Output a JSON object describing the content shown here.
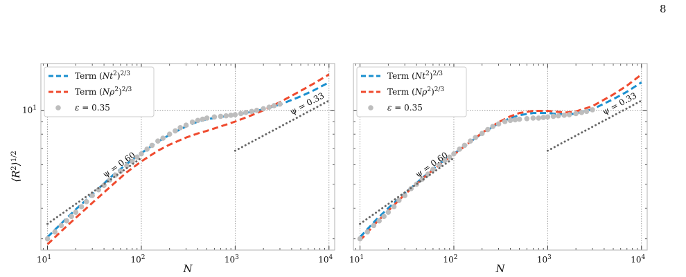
{
  "page_number": "8",
  "colors": {
    "term_nt2": "#1a8fcf",
    "term_nrho2": "#ef4a2e",
    "data_points": "#bdbdbd",
    "guide_lines": "#666666",
    "grid": "#888888",
    "frame": "#b0b0b0"
  },
  "chart_data": [
    {
      "type": "line",
      "panel": "left",
      "xlabel": "N",
      "ylabel": "⟨R²⟩^1/2",
      "xscale": "log",
      "yscale": "log",
      "xlim": [
        8.5,
        11500
      ],
      "ylim": [
        2.7,
        15.5
      ],
      "x_ticks": [
        "10^1",
        "10^2",
        "10^3",
        "10^4"
      ],
      "y_ticks": [
        "10^1"
      ],
      "grid": true,
      "legend_position": "top-left",
      "series": [
        {
          "name": "Term (Nt^2)^2/3",
          "style": "dashed",
          "points": [
            [
              10,
              3.05
            ],
            [
              15,
              3.55
            ],
            [
              20,
              3.95
            ],
            [
              30,
              4.55
            ],
            [
              50,
              5.45
            ],
            [
              70,
              6.05
            ],
            [
              100,
              6.7
            ],
            [
              150,
              7.45
            ],
            [
              200,
              7.95
            ],
            [
              300,
              8.6
            ],
            [
              400,
              9.0
            ],
            [
              500,
              9.2
            ],
            [
              700,
              9.4
            ],
            [
              1000,
              9.6
            ],
            [
              1500,
              9.85
            ],
            [
              2000,
              10.1
            ],
            [
              3000,
              10.55
            ],
            [
              5000,
              11.4
            ],
            [
              7000,
              12.1
            ],
            [
              10000,
              13.0
            ]
          ]
        },
        {
          "name": "Term (Nρ^2)^2/3",
          "style": "dashed",
          "points": [
            [
              10,
              2.85
            ],
            [
              15,
              3.3
            ],
            [
              20,
              3.65
            ],
            [
              30,
              4.2
            ],
            [
              50,
              5.0
            ],
            [
              70,
              5.6
            ],
            [
              100,
              6.2
            ],
            [
              150,
              6.85
            ],
            [
              200,
              7.25
            ],
            [
              300,
              7.75
            ],
            [
              400,
              8.05
            ],
            [
              500,
              8.25
            ],
            [
              700,
              8.6
            ],
            [
              1000,
              9.0
            ],
            [
              1500,
              9.55
            ],
            [
              2000,
              10.0
            ],
            [
              3000,
              10.8
            ],
            [
              5000,
              12.0
            ],
            [
              7000,
              12.9
            ],
            [
              10000,
              14.0
            ]
          ]
        },
        {
          "name": "ε = 0.35",
          "style": "markers",
          "points": [
            [
              10,
              3.0
            ],
            [
              12,
              3.2
            ],
            [
              14,
              3.4
            ],
            [
              16,
              3.55
            ],
            [
              18,
              3.7
            ],
            [
              20,
              3.85
            ],
            [
              23,
              4.05
            ],
            [
              26,
              4.25
            ],
            [
              30,
              4.5
            ],
            [
              35,
              4.75
            ],
            [
              40,
              4.95
            ],
            [
              46,
              5.2
            ],
            [
              53,
              5.45
            ],
            [
              60,
              5.65
            ],
            [
              70,
              5.95
            ],
            [
              80,
              6.2
            ],
            [
              90,
              6.45
            ],
            [
              100,
              6.65
            ],
            [
              115,
              6.95
            ],
            [
              130,
              7.2
            ],
            [
              150,
              7.5
            ],
            [
              170,
              7.7
            ],
            [
              200,
              8.0
            ],
            [
              230,
              8.25
            ],
            [
              260,
              8.5
            ],
            [
              300,
              8.7
            ],
            [
              350,
              8.95
            ],
            [
              400,
              9.1
            ],
            [
              450,
              9.2
            ],
            [
              500,
              9.3
            ],
            [
              600,
              9.4
            ],
            [
              700,
              9.45
            ],
            [
              800,
              9.5
            ],
            [
              900,
              9.55
            ],
            [
              1000,
              9.6
            ],
            [
              1150,
              9.7
            ],
            [
              1300,
              9.8
            ],
            [
              1500,
              9.9
            ],
            [
              1700,
              10.0
            ],
            [
              2000,
              10.15
            ],
            [
              2300,
              10.3
            ],
            [
              2600,
              10.45
            ],
            [
              3000,
              10.6
            ]
          ]
        },
        {
          "name": "ψ = 0.60",
          "style": "dotted",
          "label": "ψ = 0.60",
          "points": [
            [
              10,
              3.45
            ],
            [
              100,
              6.4
            ]
          ]
        },
        {
          "name": "ψ = 0.33",
          "style": "dotted",
          "label": "ψ = 0.33",
          "points": [
            [
              1000,
              6.85
            ],
            [
              10000,
              10.95
            ]
          ]
        }
      ]
    },
    {
      "type": "line",
      "panel": "right",
      "xlabel": "N",
      "ylabel": "",
      "xscale": "log",
      "yscale": "log",
      "xlim": [
        8.5,
        11500
      ],
      "ylim": [
        2.7,
        15.5
      ],
      "x_ticks": [
        "10^1",
        "10^2",
        "10^3",
        "10^4"
      ],
      "y_ticks": [],
      "grid": true,
      "legend_position": "top-left",
      "series": [
        {
          "name": "Term (Nt^2)^2/3",
          "style": "dashed",
          "points": [
            [
              10,
              3.05
            ],
            [
              15,
              3.6
            ],
            [
              20,
              4.0
            ],
            [
              30,
              4.6
            ],
            [
              50,
              5.45
            ],
            [
              70,
              6.05
            ],
            [
              100,
              6.65
            ],
            [
              150,
              7.45
            ],
            [
              200,
              8.05
            ],
            [
              300,
              8.85
            ],
            [
              400,
              9.3
            ],
            [
              500,
              9.55
            ],
            [
              700,
              9.75
            ],
            [
              1000,
              9.75
            ],
            [
              1300,
              9.65
            ],
            [
              1600,
              9.6
            ],
            [
              2000,
              9.7
            ],
            [
              3000,
              10.1
            ],
            [
              5000,
              11.1
            ],
            [
              7000,
              11.9
            ],
            [
              10000,
              13.0
            ]
          ]
        },
        {
          "name": "Term (Nρ^2)^2/3",
          "style": "dashed",
          "points": [
            [
              10,
              2.95
            ],
            [
              15,
              3.5
            ],
            [
              20,
              3.9
            ],
            [
              30,
              4.55
            ],
            [
              50,
              5.4
            ],
            [
              70,
              6.0
            ],
            [
              100,
              6.6
            ],
            [
              150,
              7.45
            ],
            [
              200,
              8.1
            ],
            [
              300,
              8.95
            ],
            [
              400,
              9.45
            ],
            [
              500,
              9.75
            ],
            [
              700,
              9.95
            ],
            [
              1000,
              9.95
            ],
            [
              1300,
              9.85
            ],
            [
              1600,
              9.8
            ],
            [
              2000,
              9.9
            ],
            [
              3000,
              10.4
            ],
            [
              5000,
              11.6
            ],
            [
              7000,
              12.6
            ],
            [
              10000,
              14.0
            ]
          ]
        },
        {
          "name": "ε = 0.35",
          "style": "markers",
          "points": [
            [
              10,
              3.0
            ],
            [
              12,
              3.2
            ],
            [
              14,
              3.4
            ],
            [
              16,
              3.55
            ],
            [
              18,
              3.7
            ],
            [
              20,
              3.85
            ],
            [
              23,
              4.05
            ],
            [
              26,
              4.3
            ],
            [
              30,
              4.5
            ],
            [
              35,
              4.8
            ],
            [
              40,
              5.0
            ],
            [
              46,
              5.25
            ],
            [
              53,
              5.5
            ],
            [
              60,
              5.75
            ],
            [
              70,
              6.0
            ],
            [
              80,
              6.25
            ],
            [
              90,
              6.45
            ],
            [
              100,
              6.65
            ],
            [
              115,
              6.95
            ],
            [
              130,
              7.2
            ],
            [
              150,
              7.5
            ],
            [
              170,
              7.75
            ],
            [
              200,
              8.05
            ],
            [
              230,
              8.35
            ],
            [
              260,
              8.6
            ],
            [
              300,
              8.8
            ],
            [
              350,
              9.0
            ],
            [
              400,
              9.1
            ],
            [
              450,
              9.15
            ],
            [
              500,
              9.2
            ],
            [
              600,
              9.25
            ],
            [
              700,
              9.3
            ],
            [
              800,
              9.3
            ],
            [
              900,
              9.35
            ],
            [
              1000,
              9.4
            ],
            [
              1150,
              9.45
            ],
            [
              1300,
              9.5
            ],
            [
              1500,
              9.55
            ],
            [
              1700,
              9.6
            ],
            [
              2000,
              9.7
            ],
            [
              2300,
              9.8
            ],
            [
              2600,
              9.9
            ],
            [
              3000,
              10.05
            ]
          ]
        },
        {
          "name": "ψ = 0.60",
          "style": "dotted",
          "label": "ψ = 0.60",
          "points": [
            [
              10,
              3.45
            ],
            [
              100,
              6.4
            ]
          ]
        },
        {
          "name": "ψ = 0.33",
          "style": "dotted",
          "label": "ψ = 0.33",
          "points": [
            [
              1000,
              6.85
            ],
            [
              10000,
              10.95
            ]
          ]
        }
      ]
    }
  ]
}
